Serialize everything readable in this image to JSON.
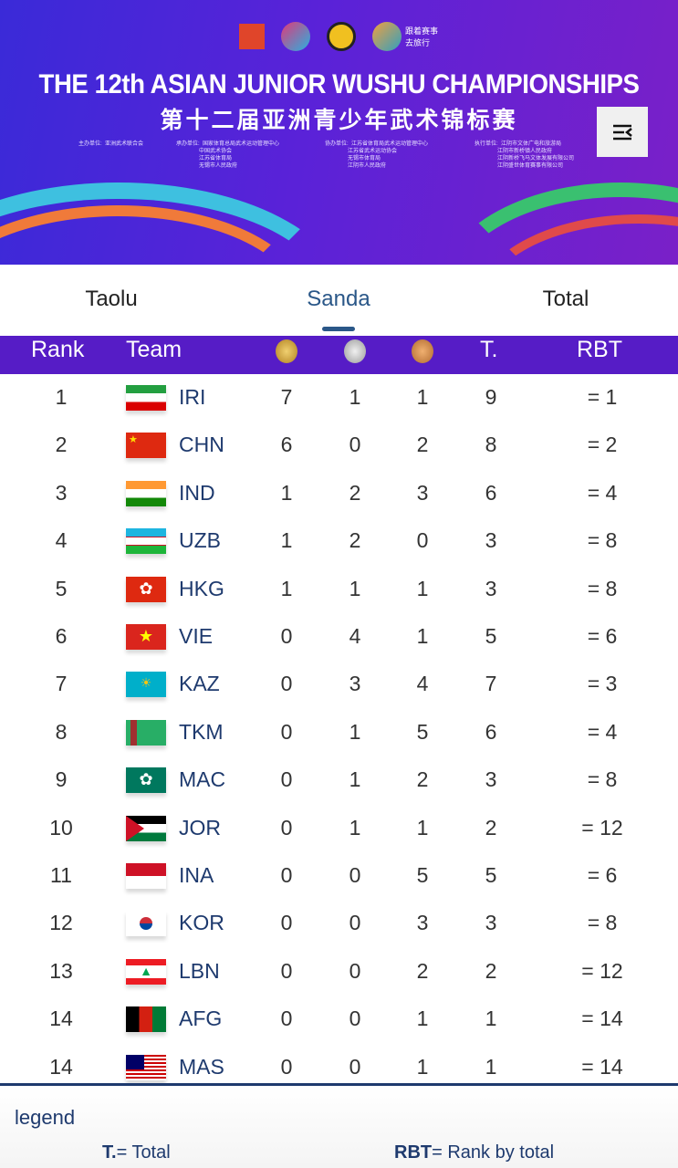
{
  "banner": {
    "title_en": "THE 12th ASIAN JUNIOR WUSHU CHAMPIONSHIPS",
    "title_cn": "第十二届亚洲青少年武术锦标赛",
    "logo_caption": "跟着赛事 去旅行",
    "organizers": [
      "主办单位:  亚洲武术联合会",
      "承办单位:  国家体育总局武术运动管理中心\n               中国武术协会\n               江苏省体育局\n               无锡市人民政府",
      "协办单位:  江苏省体育局武术运动管理中心\n               江苏省武术运动协会\n               无锡市体育局\n               江阴市人民政府",
      "执行单位:  江阴市文体广电和旅游局\n               江阴市新桥镇人民政府\n               江阴新桥飞马文体发展有限公司\n               江阴盛世体育赛事有限公司"
    ]
  },
  "tabs": [
    {
      "label": "Taolu"
    },
    {
      "label": "Sanda",
      "active": true
    },
    {
      "label": "Total"
    }
  ],
  "table": {
    "headers": {
      "rank": "Rank",
      "team": "Team",
      "gold": "gold-medal-icon",
      "silver": "silver-medal-icon",
      "bronze": "bronze-medal-icon",
      "total": "T.",
      "rbt": "RBT"
    },
    "rows": [
      {
        "rank": "1",
        "team": "IRI",
        "gold": "7",
        "silver": "1",
        "bronze": "1",
        "total": "9",
        "rbt": "= 1"
      },
      {
        "rank": "2",
        "team": "CHN",
        "gold": "6",
        "silver": "0",
        "bronze": "2",
        "total": "8",
        "rbt": "= 2"
      },
      {
        "rank": "3",
        "team": "IND",
        "gold": "1",
        "silver": "2",
        "bronze": "3",
        "total": "6",
        "rbt": "= 4"
      },
      {
        "rank": "4",
        "team": "UZB",
        "gold": "1",
        "silver": "2",
        "bronze": "0",
        "total": "3",
        "rbt": "= 8"
      },
      {
        "rank": "5",
        "team": "HKG",
        "gold": "1",
        "silver": "1",
        "bronze": "1",
        "total": "3",
        "rbt": "= 8"
      },
      {
        "rank": "6",
        "team": "VIE",
        "gold": "0",
        "silver": "4",
        "bronze": "1",
        "total": "5",
        "rbt": "= 6"
      },
      {
        "rank": "7",
        "team": "KAZ",
        "gold": "0",
        "silver": "3",
        "bronze": "4",
        "total": "7",
        "rbt": "= 3"
      },
      {
        "rank": "8",
        "team": "TKM",
        "gold": "0",
        "silver": "1",
        "bronze": "5",
        "total": "6",
        "rbt": "= 4"
      },
      {
        "rank": "9",
        "team": "MAC",
        "gold": "0",
        "silver": "1",
        "bronze": "2",
        "total": "3",
        "rbt": "= 8"
      },
      {
        "rank": "10",
        "team": "JOR",
        "gold": "0",
        "silver": "1",
        "bronze": "1",
        "total": "2",
        "rbt": "= 12"
      },
      {
        "rank": "11",
        "team": "INA",
        "gold": "0",
        "silver": "0",
        "bronze": "5",
        "total": "5",
        "rbt": "= 6"
      },
      {
        "rank": "12",
        "team": "KOR",
        "gold": "0",
        "silver": "0",
        "bronze": "3",
        "total": "3",
        "rbt": "= 8"
      },
      {
        "rank": "13",
        "team": "LBN",
        "gold": "0",
        "silver": "0",
        "bronze": "2",
        "total": "2",
        "rbt": "= 12"
      },
      {
        "rank": "14",
        "team": "AFG",
        "gold": "0",
        "silver": "0",
        "bronze": "1",
        "total": "1",
        "rbt": "= 14"
      },
      {
        "rank": "14",
        "team": "MAS",
        "gold": "0",
        "silver": "0",
        "bronze": "1",
        "total": "1",
        "rbt": "= 14"
      }
    ]
  },
  "legend": {
    "title": "legend",
    "t_key": "T.",
    "t_desc": "= Total",
    "rbt_key": "RBT",
    "rbt_desc": "= Rank by total"
  },
  "colors": {
    "header_bg": "#561cc6",
    "accent": "#2a5788",
    "team_text": "#1e3a6e"
  }
}
